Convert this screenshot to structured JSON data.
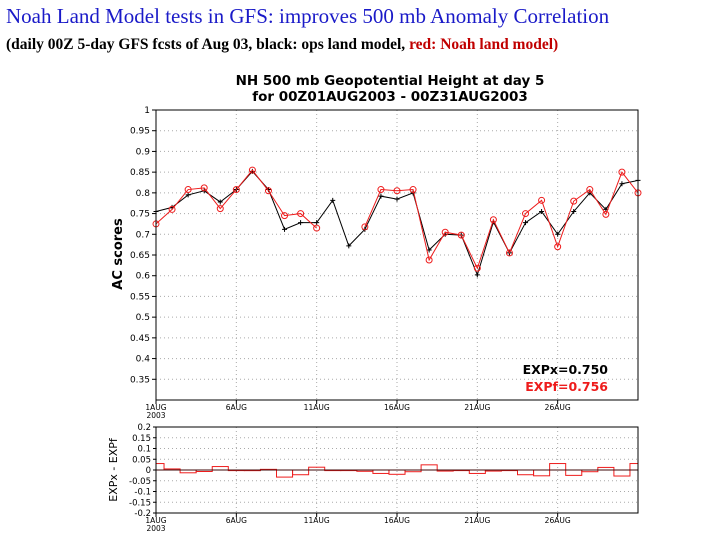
{
  "slide": {
    "title": "Noah Land Model tests in GFS:  improves 500 mb Anomaly Correlation",
    "subtitle_black": "(daily 00Z 5-day GFS fcsts of Aug 03, black: ops land model, ",
    "subtitle_red": "red: Noah land model)"
  },
  "colors": {
    "ops": "#000000",
    "noah": "#ee1c1c",
    "title": "#1a1ac8",
    "grid": "#aaaaaa"
  },
  "chart_data": [
    {
      "type": "line",
      "title": "NH 500 mb Geopotential Height at day 5",
      "subtitle": "for 00Z01AUG2003 - 00Z31AUG2003",
      "ylabel": "AC scores",
      "ylim": [
        0.3,
        1.0
      ],
      "yticks": [
        "0.35",
        "0.4",
        "0.45",
        "0.5",
        "0.55",
        "0.6",
        "0.65",
        "0.7",
        "0.75",
        "0.8",
        "0.85",
        "0.9",
        "0.95",
        "1"
      ],
      "xlim": [
        1,
        31
      ],
      "xticks": [
        {
          "day": 1,
          "label": "1AUG",
          "label2": "2003"
        },
        {
          "day": 6,
          "label": "6AUG"
        },
        {
          "day": 11,
          "label": "11AUG"
        },
        {
          "day": 16,
          "label": "16AUG"
        },
        {
          "day": 21,
          "label": "21AUG"
        },
        {
          "day": 26,
          "label": "26AUG"
        }
      ],
      "days": [
        1,
        2,
        3,
        4,
        5,
        6,
        7,
        8,
        9,
        10,
        11,
        12,
        13,
        14,
        15,
        16,
        17,
        18,
        19,
        20,
        21,
        22,
        23,
        24,
        25,
        26,
        27,
        28,
        29,
        30,
        31
      ],
      "series": [
        {
          "name": "EXPx",
          "label": "EXPx=0.750",
          "color": "#000000",
          "marker": "plus",
          "values": [
            0.755,
            0.765,
            0.795,
            0.805,
            0.778,
            0.808,
            0.852,
            0.808,
            0.712,
            0.728,
            0.728,
            0.782,
            0.672,
            0.712,
            0.792,
            0.785,
            0.8,
            0.662,
            0.7,
            0.698,
            0.602,
            0.73,
            0.655,
            0.728,
            0.755,
            0.7,
            0.755,
            0.8,
            0.76,
            0.822,
            0.83
          ]
        },
        {
          "name": "EXPf",
          "label": "EXPf=0.756",
          "color": "#ee1c1c",
          "marker": "circle",
          "values": [
            0.725,
            0.76,
            0.808,
            0.812,
            0.762,
            0.808,
            0.855,
            0.805,
            0.745,
            0.75,
            0.715,
            null,
            null,
            0.718,
            0.808,
            0.805,
            0.808,
            0.638,
            0.705,
            0.698,
            0.618,
            0.735,
            0.655,
            0.75,
            0.782,
            0.67,
            0.78,
            0.808,
            0.748,
            0.85,
            0.8
          ]
        }
      ]
    },
    {
      "type": "bar",
      "ylabel": "EXPx - EXPf",
      "ylim": [
        -0.2,
        0.2
      ],
      "yticks": [
        "0.2",
        "0.15",
        "0.1",
        "0.05",
        "0",
        "-0.05",
        "-0.1",
        "-0.15",
        "-0.2"
      ],
      "xlim": [
        1,
        31
      ],
      "xticks": [
        {
          "day": 1,
          "label": "1AUG",
          "label2": "2003"
        },
        {
          "day": 6,
          "label": "6AUG"
        },
        {
          "day": 11,
          "label": "11AUG"
        },
        {
          "day": 16,
          "label": "16AUG"
        },
        {
          "day": 21,
          "label": "21AUG"
        },
        {
          "day": 26,
          "label": "26AUG"
        }
      ],
      "days": [
        1,
        2,
        3,
        4,
        5,
        6,
        7,
        8,
        9,
        10,
        11,
        12,
        13,
        14,
        15,
        16,
        17,
        18,
        19,
        20,
        21,
        22,
        23,
        24,
        25,
        26,
        27,
        28,
        29,
        30,
        31
      ],
      "values": [
        0.03,
        0.005,
        -0.013,
        -0.007,
        0.016,
        0,
        -0.003,
        0.003,
        -0.033,
        -0.022,
        0.013,
        0,
        0,
        -0.006,
        -0.016,
        -0.02,
        -0.008,
        0.024,
        -0.005,
        0,
        -0.016,
        -0.005,
        0,
        -0.022,
        -0.027,
        0.03,
        -0.025,
        -0.008,
        0.012,
        -0.028,
        0.03
      ]
    }
  ]
}
